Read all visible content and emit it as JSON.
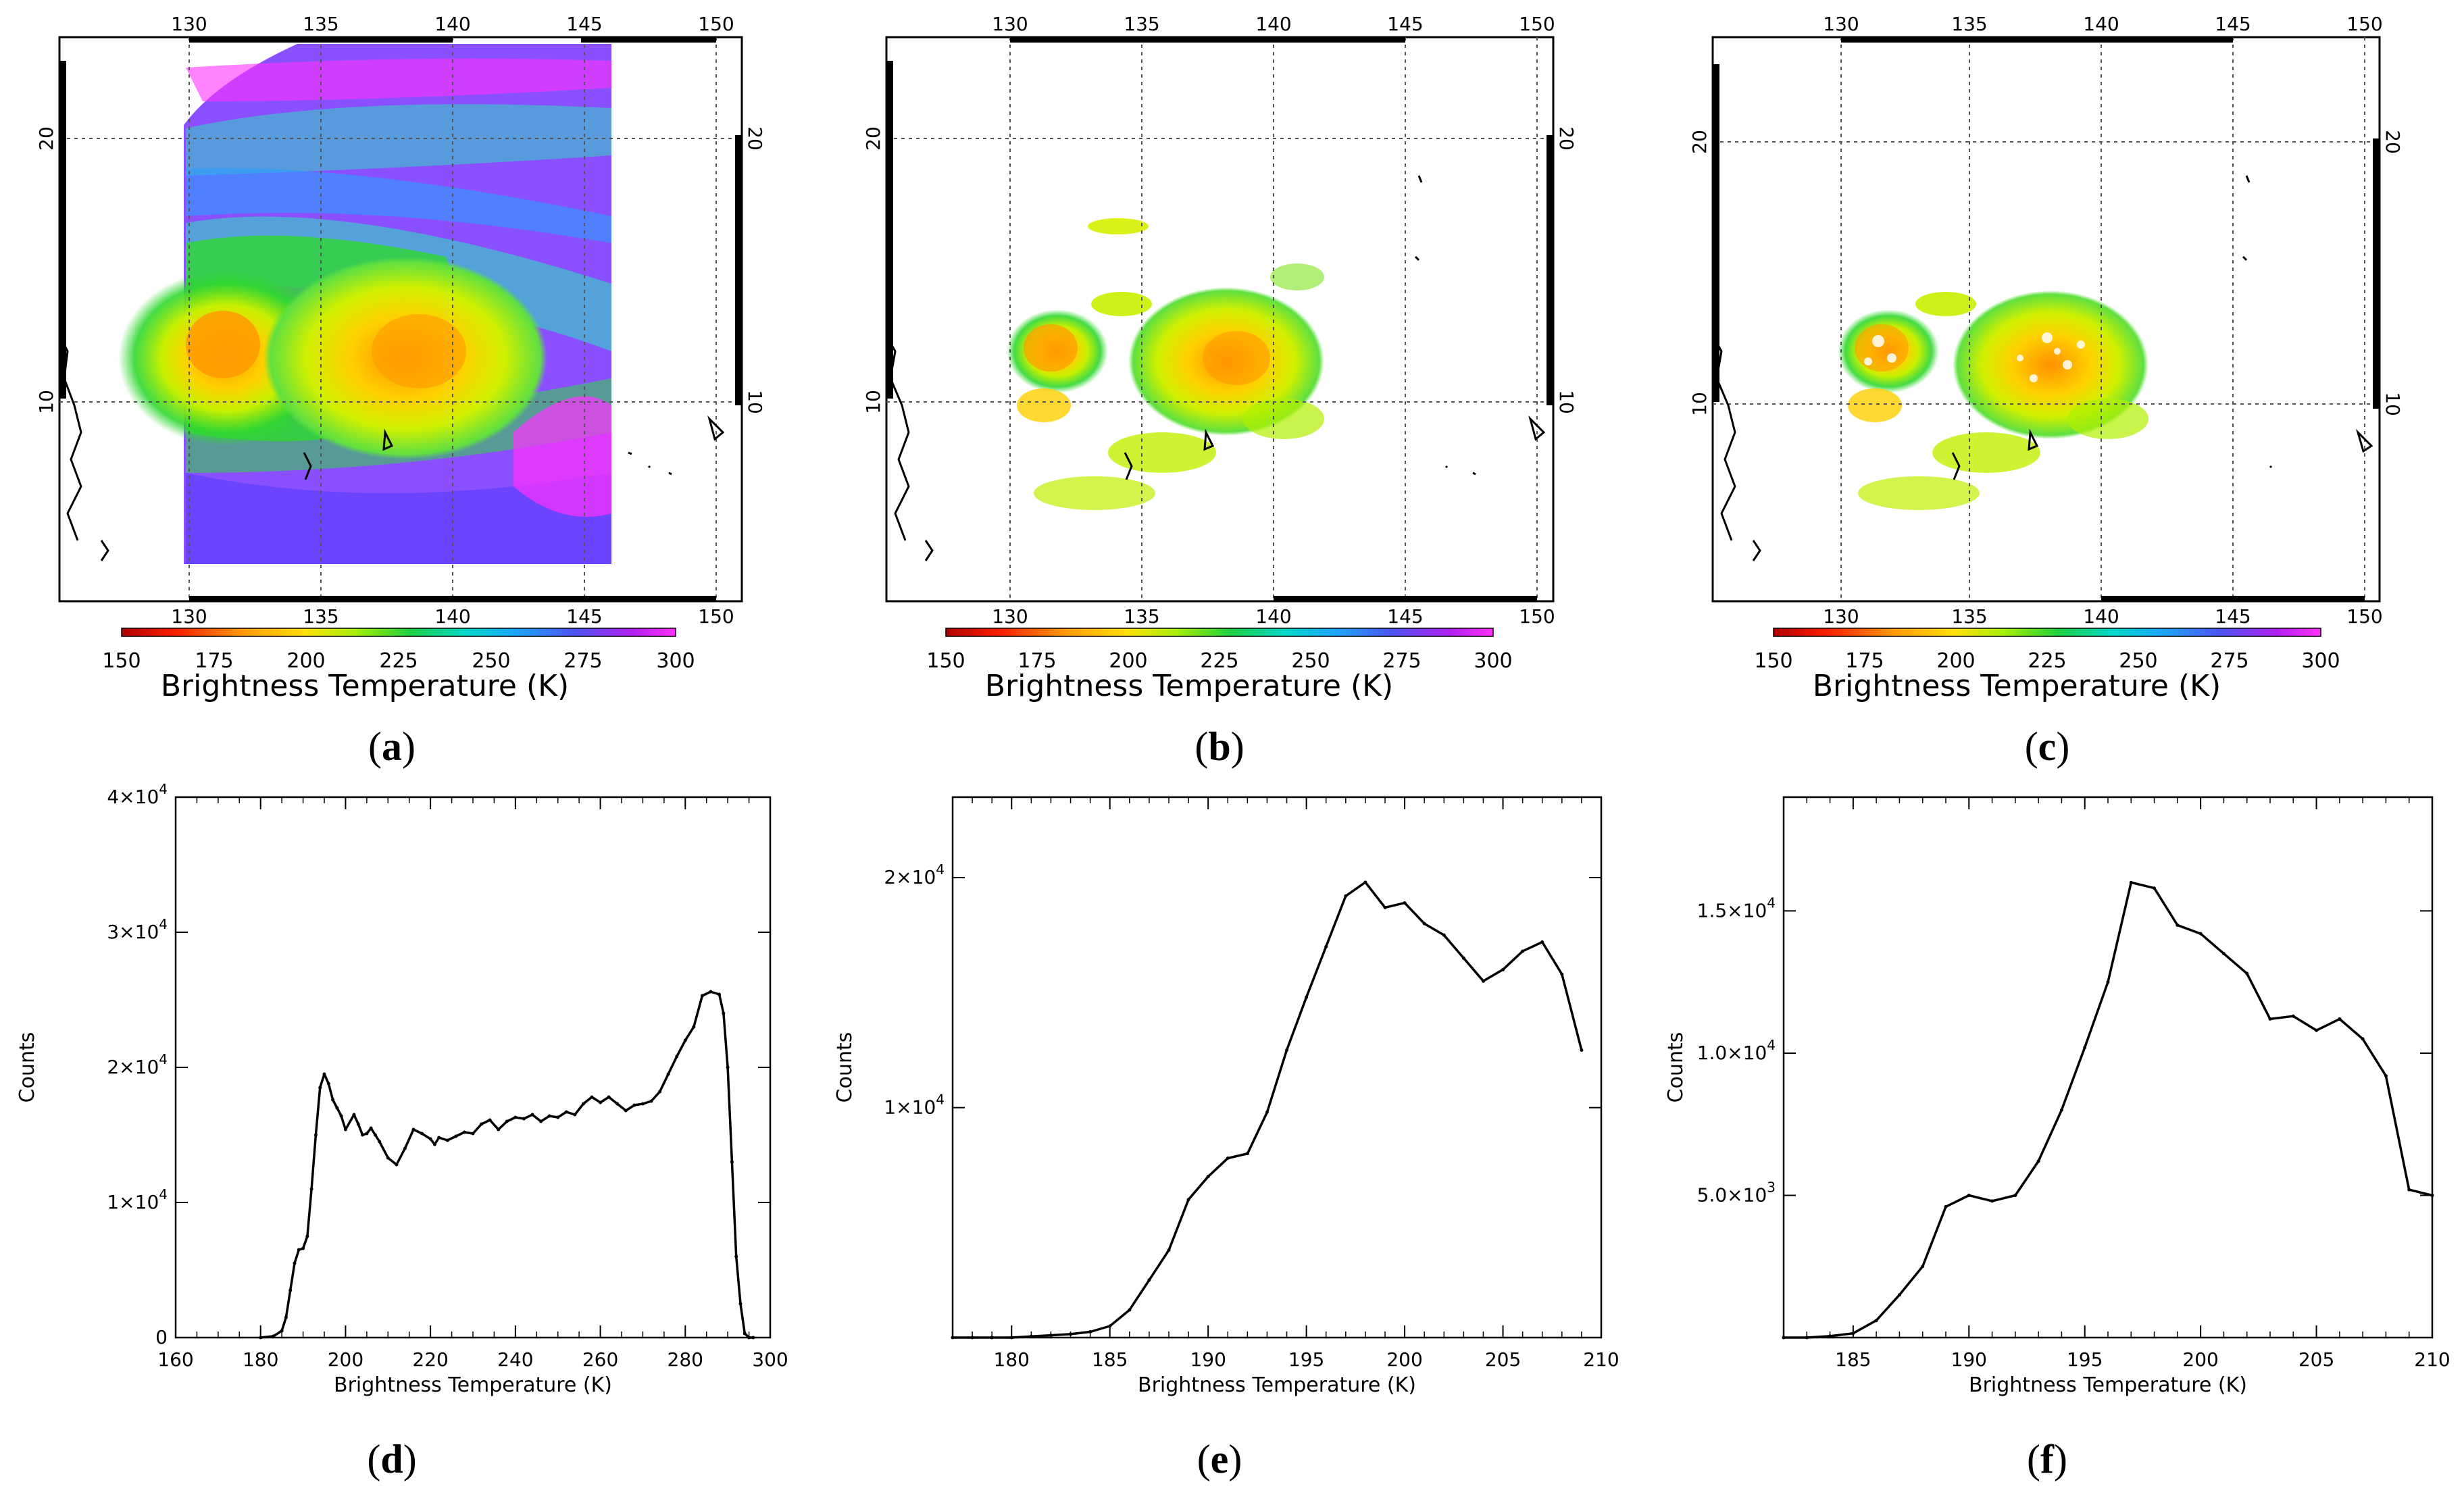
{
  "colors": {
    "cloud_scale": [
      "#b00000",
      "#ff3000",
      "#ff9a00",
      "#ffe000",
      "#b8f000",
      "#30d830",
      "#00d8c0",
      "#20a0ff",
      "#6040ff",
      "#c020ff",
      "#ff30ff"
    ],
    "ocean": "#ffffff",
    "line": "#000000"
  },
  "maps": [
    {
      "label": "a",
      "colorbar": {
        "ticks": [
          "150",
          "175",
          "200",
          "225",
          "250",
          "275",
          "300"
        ],
        "label": "Brightness Temperature (K)"
      },
      "lon_ticks": [
        "130",
        "135",
        "140",
        "145",
        "150"
      ],
      "lat_ticks": [
        "20",
        "10"
      ],
      "coverage": "full"
    },
    {
      "label": "b",
      "colorbar": {
        "ticks": [
          "150",
          "175",
          "200",
          "225",
          "250",
          "275",
          "300"
        ],
        "label": "Brightness Temperature (K)"
      },
      "lon_ticks": [
        "130",
        "135",
        "140",
        "145",
        "150"
      ],
      "lat_ticks": [
        "20",
        "10"
      ],
      "coverage": "cold-clouds"
    },
    {
      "label": "c",
      "colorbar": {
        "ticks": [
          "150",
          "175",
          "200",
          "225",
          "250",
          "275",
          "300"
        ],
        "label": "Brightness Temperature (K)"
      },
      "lon_ticks": [
        "130",
        "135",
        "140",
        "145",
        "150"
      ],
      "lat_ticks": [
        "20",
        "10"
      ],
      "coverage": "cold-clouds-speckled"
    }
  ],
  "chart_data": [
    {
      "type": "line",
      "label": "d",
      "xlabel": "Brightness Temperature (K)",
      "ylabel": "Counts",
      "xlim": [
        160,
        300
      ],
      "ylim": [
        0,
        40000
      ],
      "xticks": [
        "160",
        "180",
        "200",
        "220",
        "240",
        "260",
        "280",
        "300"
      ],
      "yticks": [
        {
          "value": 0,
          "mant": "0",
          "exp": ""
        },
        {
          "value": 10000,
          "mant": "1×10",
          "exp": "4"
        },
        {
          "value": 20000,
          "mant": "2×10",
          "exp": "4"
        },
        {
          "value": 30000,
          "mant": "3×10",
          "exp": "4"
        },
        {
          "value": 40000,
          "mant": "4×10",
          "exp": "4"
        }
      ],
      "x": [
        180,
        183,
        185,
        186,
        187,
        188,
        189,
        190,
        191,
        192,
        193,
        194,
        195,
        196,
        197,
        198,
        199,
        200,
        202,
        203,
        204,
        205,
        206,
        207,
        208,
        210,
        212,
        214,
        216,
        218,
        220,
        221,
        222,
        224,
        226,
        228,
        230,
        232,
        234,
        236,
        238,
        240,
        242,
        244,
        246,
        248,
        250,
        252,
        254,
        256,
        258,
        260,
        262,
        264,
        266,
        268,
        270,
        272,
        274,
        276,
        278,
        280,
        282,
        284,
        286,
        288,
        289,
        290,
        291,
        292,
        293,
        294,
        295,
        296
      ],
      "y": [
        0,
        100,
        500,
        1500,
        3500,
        5500,
        6500,
        6600,
        7500,
        11000,
        15000,
        18500,
        19500,
        18800,
        17600,
        17000,
        16400,
        15400,
        16500,
        15800,
        15000,
        15100,
        15500,
        15000,
        14500,
        13300,
        12800,
        14000,
        15400,
        15100,
        14700,
        14300,
        14800,
        14600,
        14900,
        15200,
        15100,
        15800,
        16100,
        15400,
        16000,
        16300,
        16200,
        16500,
        16000,
        16400,
        16300,
        16700,
        16500,
        17300,
        17800,
        17400,
        17800,
        17300,
        16800,
        17200,
        17300,
        17500,
        18200,
        19500,
        20800,
        22000,
        23000,
        25300,
        25600,
        25400,
        24000,
        20000,
        13000,
        6000,
        2500,
        300,
        0,
        0
      ]
    },
    {
      "type": "line",
      "label": "e",
      "xlabel": "Brightness Temperature (K)",
      "ylabel": "Counts",
      "xlim": [
        177,
        210
      ],
      "ylim": [
        0,
        23500
      ],
      "xticks": [
        "180",
        "185",
        "190",
        "195",
        "200",
        "205",
        "210"
      ],
      "yticks": [
        {
          "value": 10000,
          "mant": "1×10",
          "exp": "4"
        },
        {
          "value": 20000,
          "mant": "2×10",
          "exp": "4"
        }
      ],
      "x": [
        177,
        178,
        179,
        180,
        181,
        182,
        183,
        184,
        185,
        186,
        187,
        188,
        189,
        190,
        191,
        192,
        193,
        194,
        195,
        196,
        197,
        198,
        199,
        200,
        201,
        202,
        203,
        204,
        205,
        206,
        207,
        208,
        209
      ],
      "y": [
        0,
        0,
        0,
        0,
        50,
        100,
        150,
        250,
        500,
        1200,
        2500,
        3800,
        6000,
        7000,
        7800,
        8000,
        9800,
        12500,
        14800,
        17000,
        19200,
        19800,
        18700,
        18900,
        18000,
        17500,
        16500,
        15500,
        16000,
        16800,
        17200,
        15800,
        12500
      ]
    },
    {
      "type": "line",
      "label": "f",
      "xlabel": "Brightness Temperature (K)",
      "ylabel": "Counts",
      "xlim": [
        182,
        210
      ],
      "ylim": [
        0,
        19000
      ],
      "xticks": [
        "185",
        "190",
        "195",
        "200",
        "205",
        "210"
      ],
      "yticks": [
        {
          "value": 5000,
          "mant": "5.0×10",
          "exp": "3"
        },
        {
          "value": 10000,
          "mant": "1.0×10",
          "exp": "4"
        },
        {
          "value": 15000,
          "mant": "1.5×10",
          "exp": "4"
        }
      ],
      "x": [
        182,
        183,
        184,
        185,
        186,
        187,
        188,
        189,
        190,
        191,
        192,
        193,
        194,
        195,
        196,
        197,
        198,
        199,
        200,
        201,
        202,
        203,
        204,
        205,
        206,
        207,
        208,
        209,
        210
      ],
      "y": [
        0,
        0,
        50,
        150,
        600,
        1500,
        2500,
        4600,
        5000,
        4800,
        5000,
        6200,
        8000,
        10200,
        12500,
        16000,
        15800,
        14500,
        14200,
        13500,
        12800,
        11200,
        11300,
        10800,
        11200,
        10500,
        9200,
        5200,
        5000
      ]
    }
  ]
}
